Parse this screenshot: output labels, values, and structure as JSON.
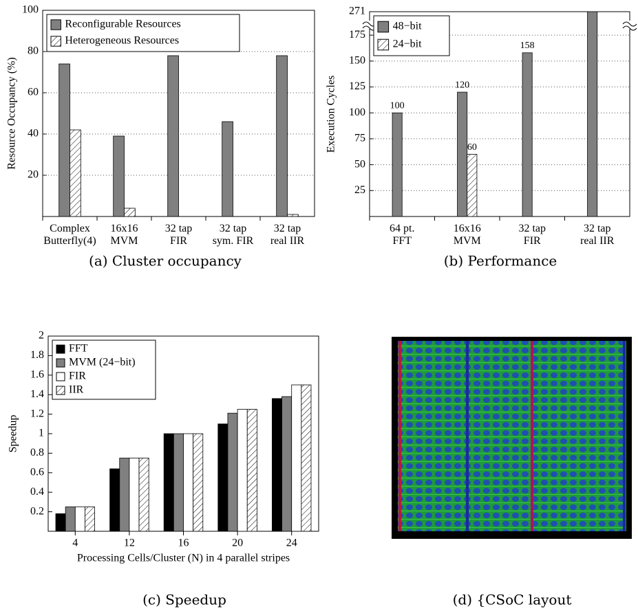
{
  "chart_data": [
    {
      "type": "bar",
      "caption": "(a) Cluster occupancy",
      "ylabel": "Resource Occupancy (%)",
      "categories": [
        "Complex\nButterfly(4)",
        "16x16\nMVM",
        "32 tap\nFIR",
        "32 tap\nsym. FIR",
        "32 tap\nreal IIR"
      ],
      "series": [
        {
          "name": "Reconfigurable Resources",
          "color": "#808080",
          "values": [
            74,
            39,
            78,
            46,
            78
          ]
        },
        {
          "name": "Heterogeneous Resources",
          "color": "#ffffff",
          "hatch": true,
          "values": [
            42,
            4,
            0,
            0,
            1
          ]
        }
      ],
      "ylim": [
        0,
        100
      ],
      "yticks": [
        20,
        40,
        60,
        80,
        100
      ],
      "grid": true,
      "legend": "upper left"
    },
    {
      "type": "bar",
      "caption": "(b) Performance",
      "ylabel": "Execution Cycles",
      "categories": [
        "64 pt.\nFFT",
        "16x16\nMVM",
        "32 tap\nFIR",
        "32 tap\nreal IIR"
      ],
      "series": [
        {
          "name": "48−bit",
          "color": "#808080",
          "values": [
            100,
            120,
            158,
            271
          ]
        },
        {
          "name": "24−bit",
          "color": "#ffffff",
          "hatch": true,
          "values": [
            null,
            60,
            null,
            null
          ]
        }
      ],
      "ylim": [
        0,
        271
      ],
      "axis_break": [
        195,
        271
      ],
      "yticks": [
        25,
        50,
        75,
        100,
        125,
        150,
        175,
        271
      ],
      "grid": true,
      "data_labels": true,
      "legend": "upper left"
    },
    {
      "type": "bar",
      "caption": "(c) Speedup",
      "ylabel": "Speedup",
      "xlabel": "Processing Cells/Cluster (N) in 4 parallel stripes",
      "categories": [
        "4",
        "12",
        "16",
        "20",
        "24"
      ],
      "series": [
        {
          "name": "FFT",
          "color": "#000000",
          "values": [
            0.18,
            0.64,
            1.0,
            1.1,
            1.36
          ]
        },
        {
          "name": "MVM (24−bit)",
          "color": "#808080",
          "values": [
            0.25,
            0.75,
            1.0,
            1.21,
            1.38
          ]
        },
        {
          "name": "FIR",
          "color": "#ffffff",
          "values": [
            0.25,
            0.75,
            1.0,
            1.25,
            1.5
          ]
        },
        {
          "name": "IIR",
          "color": "#ffffff",
          "hatch": true,
          "values": [
            0.25,
            0.75,
            1.0,
            1.25,
            1.5
          ]
        }
      ],
      "ylim": [
        0,
        2
      ],
      "yticks": [
        0.2,
        0.4,
        0.6,
        0.8,
        1,
        1.2,
        1.4,
        1.6,
        1.8,
        2
      ],
      "grid": false,
      "legend": "upper left"
    }
  ],
  "panel_d": {
    "caption": "(d) {CSoC layout"
  }
}
